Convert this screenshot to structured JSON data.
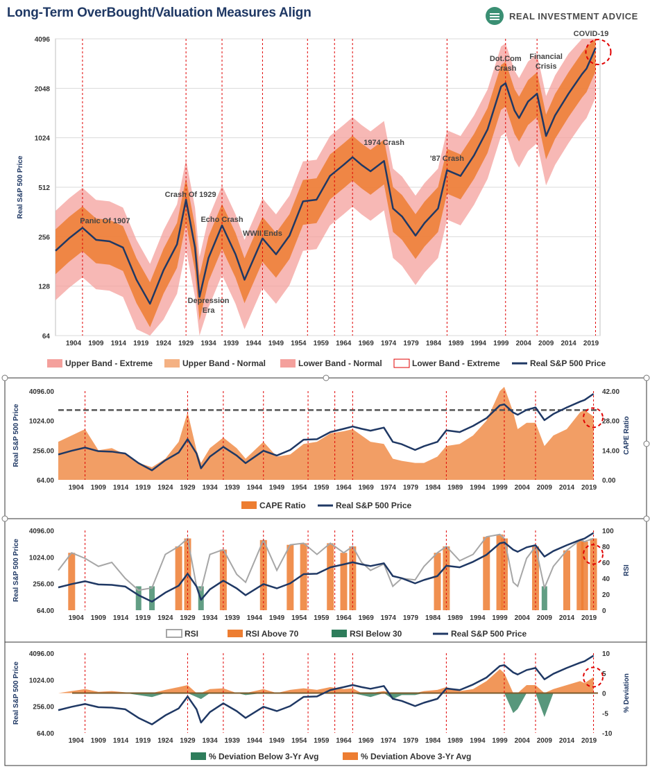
{
  "header": {
    "title": "Long-Term OverBought/Valuation Measures Align",
    "brand": "REAL INVESTMENT ADVICE"
  },
  "colors": {
    "navy": "#1f3864",
    "orange": "#ed7d31",
    "light_orange": "#f4b183",
    "pink": "#f4a09c",
    "red_dash": "#e00000",
    "green": "#2e7d5b",
    "gray": "#a6a6a6"
  },
  "event_years": [
    1906,
    1929,
    1937,
    1946,
    1956,
    1962,
    1966,
    1987,
    2000,
    2007,
    2020
  ],
  "x_ticks": [
    "1904",
    "1909",
    "1914",
    "1919",
    "1924",
    "1929",
    "1934",
    "1939",
    "1944",
    "1949",
    "1954",
    "1959",
    "1964",
    "1969",
    "1974",
    "1979",
    "1984",
    "1989",
    "1994",
    "1999",
    "2004",
    "2009",
    "2014",
    "2019"
  ],
  "chart_data": [
    {
      "type": "area",
      "ylabel": "Real S&P 500 Price",
      "y_ticks": [
        "4096",
        "2048",
        "1024",
        "512",
        "256",
        "128",
        "64"
      ],
      "y_scale": "log2",
      "ylim": [
        64,
        4096
      ],
      "annotations": [
        "Panic Of 1907",
        "Crash Of 1929",
        "Echo Crash",
        "Depression Era",
        "WWII Ends",
        "1974 Crash",
        "'87 Crash",
        "Dot.Com Crash",
        "Financial Crisis",
        "COVID-19"
      ],
      "legend": [
        "Upper Band - Extreme",
        "Upper Band - Normal",
        "Lower Band - Normal",
        "Lower Band - Extreme",
        "Real S&P 500 Price"
      ],
      "x": [
        1900,
        1903,
        1906,
        1909,
        1912,
        1915,
        1918,
        1921,
        1924,
        1927,
        1929,
        1931,
        1932,
        1934,
        1937,
        1940,
        1942,
        1946,
        1949,
        1952,
        1955,
        1958,
        1961,
        1964,
        1966,
        1968,
        1970,
        1973,
        1975,
        1977,
        1980,
        1982,
        1985,
        1987,
        1990,
        1993,
        1996,
        1999,
        2000,
        2002,
        2003,
        2005,
        2007,
        2009,
        2011,
        2014,
        2017,
        2018,
        2020
      ],
      "series": [
        {
          "name": "Real S&P 500 Price",
          "values": [
            210,
            250,
            290,
            245,
            240,
            220,
            140,
            100,
            160,
            230,
            430,
            220,
            110,
            190,
            300,
            200,
            140,
            250,
            200,
            260,
            420,
            430,
            600,
            700,
            780,
            700,
            640,
            740,
            380,
            340,
            260,
            310,
            380,
            650,
            600,
            800,
            1150,
            2100,
            2200,
            1500,
            1350,
            1700,
            1900,
            1050,
            1400,
            1900,
            2500,
            2700,
            3600
          ]
        }
      ]
    },
    {
      "type": "area",
      "ylabel": "Real S&P 500 Price",
      "y2label": "CAPE Ratio",
      "y_ticks": [
        "4096.00",
        "1024.00",
        "256.00",
        "64.00"
      ],
      "y2_ticks": [
        "42.00",
        "28.00",
        "14.00",
        "0.00"
      ],
      "legend": [
        "CAPE Ratio",
        "Real S&P 500 Price"
      ],
      "x": [
        1900,
        1903,
        1906,
        1909,
        1912,
        1915,
        1918,
        1921,
        1924,
        1927,
        1929,
        1931,
        1932,
        1934,
        1937,
        1940,
        1942,
        1946,
        1949,
        1952,
        1955,
        1958,
        1961,
        1964,
        1966,
        1968,
        1970,
        1973,
        1975,
        1977,
        1980,
        1982,
        1985,
        1987,
        1990,
        1993,
        1996,
        1999,
        2000,
        2002,
        2003,
        2005,
        2007,
        2009,
        2011,
        2014,
        2017,
        2018,
        2020
      ],
      "series": [
        {
          "name": "CAPE Ratio",
          "values": [
            18,
            21,
            24,
            14,
            15,
            12,
            8,
            6,
            10,
            18,
            32,
            14,
            8,
            15,
            20,
            15,
            10,
            18,
            11,
            12,
            17,
            18,
            22,
            23,
            24,
            21,
            18,
            17,
            10,
            9,
            8,
            8,
            11,
            16,
            17,
            21,
            28,
            42,
            44,
            32,
            24,
            27,
            27,
            16,
            21,
            24,
            32,
            33,
            30
          ]
        }
      ]
    },
    {
      "type": "area",
      "ylabel": "Real S&P 500 Price",
      "y2label": "RSI",
      "y_ticks": [
        "4096.00",
        "1024.00",
        "256.00",
        "64.00"
      ],
      "y2_ticks": [
        "100",
        "80",
        "60",
        "40",
        "20",
        "0"
      ],
      "legend": [
        "RSI",
        "RSI Above 70",
        "RSI Below 30",
        "Real S&P 500 Price"
      ],
      "x": [
        1900,
        1903,
        1906,
        1909,
        1912,
        1915,
        1918,
        1921,
        1924,
        1927,
        1929,
        1931,
        1932,
        1934,
        1937,
        1940,
        1942,
        1946,
        1949,
        1952,
        1955,
        1958,
        1961,
        1964,
        1966,
        1968,
        1970,
        1973,
        1975,
        1977,
        1980,
        1982,
        1985,
        1987,
        1990,
        1993,
        1996,
        1999,
        2000,
        2002,
        2003,
        2005,
        2007,
        2009,
        2011,
        2014,
        2017,
        2018,
        2020
      ],
      "series": [
        {
          "name": "RSI",
          "values": [
            50,
            72,
            65,
            55,
            60,
            40,
            25,
            28,
            70,
            80,
            90,
            30,
            25,
            70,
            76,
            45,
            35,
            88,
            50,
            82,
            84,
            70,
            84,
            72,
            80,
            60,
            50,
            58,
            30,
            40,
            38,
            55,
            72,
            80,
            62,
            70,
            92,
            95,
            90,
            35,
            30,
            65,
            80,
            28,
            55,
            75,
            88,
            86,
            90
          ]
        }
      ]
    },
    {
      "type": "area",
      "ylabel": "Real S&P 500 Price",
      "y2label": "% Deviation",
      "y_ticks": [
        "4096.00",
        "1024.00",
        "256.00",
        "64.00"
      ],
      "y2_ticks": [
        "10",
        "5",
        "0",
        "-5",
        "-10"
      ],
      "legend": [
        "% Deviation Below 3-Yr Avg",
        "% Deviation Above 3-Yr Avg"
      ],
      "x": [
        1900,
        1903,
        1906,
        1909,
        1912,
        1915,
        1918,
        1921,
        1924,
        1927,
        1929,
        1931,
        1932,
        1934,
        1937,
        1940,
        1942,
        1946,
        1949,
        1952,
        1955,
        1958,
        1961,
        1964,
        1966,
        1968,
        1970,
        1973,
        1975,
        1977,
        1980,
        1982,
        1985,
        1987,
        1990,
        1993,
        1996,
        1999,
        2000,
        2002,
        2003,
        2005,
        2007,
        2009,
        2011,
        2014,
        2017,
        2018,
        2020
      ],
      "series": [
        {
          "name": "% Deviation from 3-Yr Avg",
          "values": [
            0,
            0.5,
            1,
            0.3,
            0.5,
            0.2,
            -0.5,
            -1,
            0.8,
            1.5,
            2,
            -1,
            -1.5,
            1,
            1.2,
            0,
            -0.5,
            1,
            0,
            0.8,
            1.2,
            0.8,
            1.5,
            1,
            1.2,
            -0.5,
            -1,
            0.5,
            -1.5,
            -0.5,
            -0.5,
            0.5,
            0.8,
            1.5,
            0.5,
            1,
            3,
            6,
            5,
            -5,
            -4,
            2,
            2,
            -6,
            1,
            2,
            3,
            2.5,
            4
          ]
        }
      ]
    }
  ]
}
